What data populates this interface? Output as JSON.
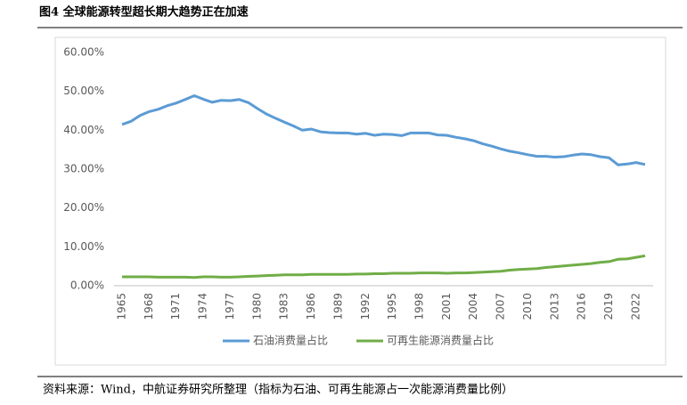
{
  "chart_data": {
    "type": "line",
    "title": "图4  全球能源转型超长期大趋势正在加速",
    "source": "资料来源：Wind，中航证券研究所整理（指标为石油、可再生能源占一次能源消费量比例）",
    "categories": [
      "1965",
      null,
      null,
      "1968",
      null,
      null,
      "1971",
      null,
      null,
      "1974",
      null,
      null,
      "1977",
      null,
      null,
      "1980",
      null,
      null,
      "1983",
      null,
      null,
      "1986",
      null,
      null,
      "1989",
      null,
      null,
      "1992",
      null,
      null,
      "1995",
      null,
      null,
      "1998",
      null,
      null,
      "2001",
      null,
      null,
      "2004",
      null,
      null,
      "2007",
      null,
      null,
      "2010",
      null,
      null,
      "2013",
      null,
      null,
      "2016",
      null,
      null,
      "2019",
      null,
      null,
      "2022",
      null
    ],
    "series": [
      {
        "name": "石油消费量占比",
        "color": "#5b9bd5",
        "values": [
          41.5,
          42.3,
          43.8,
          44.8,
          45.4,
          46.3,
          47.0,
          47.9,
          48.9,
          48.0,
          47.2,
          47.7,
          47.6,
          47.9,
          47.1,
          45.6,
          44.2,
          43.1,
          42.1,
          41.1,
          40.0,
          40.3,
          39.6,
          39.4,
          39.3,
          39.3,
          39.0,
          39.2,
          38.7,
          39.0,
          38.9,
          38.6,
          39.3,
          39.3,
          39.3,
          38.8,
          38.7,
          38.2,
          37.8,
          37.3,
          36.5,
          35.9,
          35.2,
          34.6,
          34.2,
          33.7,
          33.3,
          33.3,
          33.1,
          33.2,
          33.6,
          33.9,
          33.7,
          33.2,
          32.9,
          31.1,
          31.3,
          31.7,
          31.2
        ]
      },
      {
        "name": "可再生能源消费量占比",
        "color": "#70ad47",
        "values": [
          2.3,
          2.3,
          2.3,
          2.3,
          2.2,
          2.2,
          2.2,
          2.2,
          2.1,
          2.3,
          2.3,
          2.2,
          2.2,
          2.3,
          2.4,
          2.5,
          2.6,
          2.7,
          2.8,
          2.8,
          2.8,
          2.9,
          2.9,
          2.9,
          2.9,
          2.9,
          3.0,
          3.0,
          3.1,
          3.1,
          3.2,
          3.2,
          3.2,
          3.3,
          3.3,
          3.3,
          3.2,
          3.3,
          3.3,
          3.4,
          3.5,
          3.6,
          3.7,
          4.0,
          4.2,
          4.3,
          4.4,
          4.7,
          4.9,
          5.1,
          5.3,
          5.5,
          5.7,
          6.0,
          6.2,
          6.8,
          6.9,
          7.3,
          7.7
        ]
      }
    ],
    "ylim": [
      0,
      60
    ],
    "yticks": [
      {
        "value": 0,
        "label": "0.00%"
      },
      {
        "value": 10,
        "label": "10.00%"
      },
      {
        "value": 20,
        "label": "20.00%"
      },
      {
        "value": 30,
        "label": "30.00%"
      },
      {
        "value": 40,
        "label": "40.00%"
      },
      {
        "value": 50,
        "label": "50.00%"
      },
      {
        "value": 60,
        "label": "60.00%"
      }
    ],
    "grid": false,
    "legend": "bottom"
  }
}
